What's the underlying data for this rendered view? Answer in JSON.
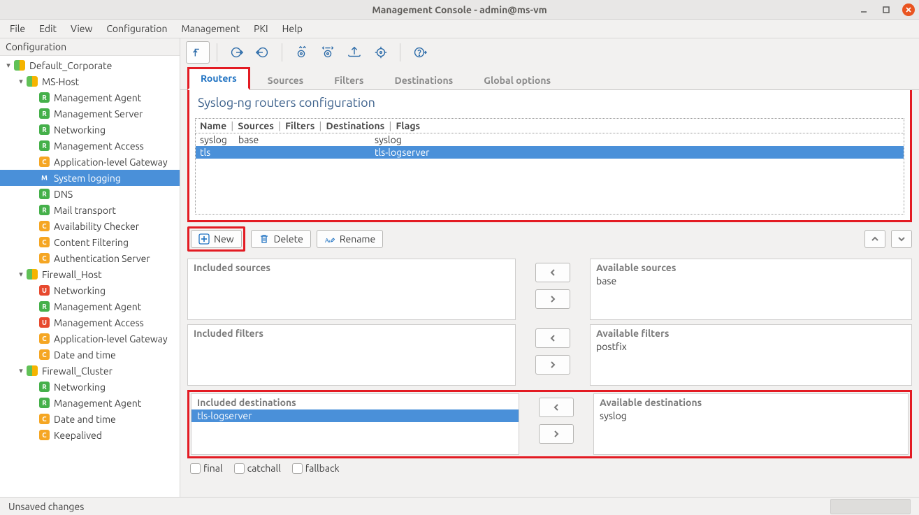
{
  "window": {
    "title": "Management Console - admin@ms-vm"
  },
  "menu": [
    "File",
    "Edit",
    "View",
    "Configuration",
    "Management",
    "PKI",
    "Help"
  ],
  "sidebar": {
    "title": "Configuration",
    "indent_unit": 18,
    "colors": {
      "site_left": "#61c157",
      "site_right": "#f5b400",
      "R": "#45b04a",
      "C": "#f5a623",
      "U": "#e7492e",
      "M": "#4a90d9"
    },
    "nodes": [
      {
        "level": 0,
        "expanded": true,
        "dual": true,
        "label": "Default_Corporate"
      },
      {
        "level": 1,
        "expanded": true,
        "dual": true,
        "label": "MS-Host"
      },
      {
        "level": 2,
        "badge": "R",
        "label": "Management Agent"
      },
      {
        "level": 2,
        "badge": "R",
        "label": "Management Server"
      },
      {
        "level": 2,
        "badge": "R",
        "label": "Networking"
      },
      {
        "level": 2,
        "badge": "R",
        "label": "Management Access"
      },
      {
        "level": 2,
        "badge": "C",
        "label": "Application-level Gateway"
      },
      {
        "level": 2,
        "badge": "M",
        "label": "System logging",
        "selected": true
      },
      {
        "level": 2,
        "badge": "R",
        "label": "DNS"
      },
      {
        "level": 2,
        "badge": "R",
        "label": "Mail transport"
      },
      {
        "level": 2,
        "badge": "C",
        "label": "Availability Checker"
      },
      {
        "level": 2,
        "badge": "C",
        "label": "Content Filtering"
      },
      {
        "level": 2,
        "badge": "C",
        "label": "Authentication Server"
      },
      {
        "level": 1,
        "expanded": true,
        "dual": true,
        "label": "Firewall_Host"
      },
      {
        "level": 2,
        "badge": "U",
        "label": "Networking"
      },
      {
        "level": 2,
        "badge": "R",
        "label": "Management Agent"
      },
      {
        "level": 2,
        "badge": "U",
        "label": "Management Access"
      },
      {
        "level": 2,
        "badge": "C",
        "label": "Application-level Gateway"
      },
      {
        "level": 2,
        "badge": "C",
        "label": "Date and time"
      },
      {
        "level": 1,
        "expanded": true,
        "dual": true,
        "label": "Firewall_Cluster"
      },
      {
        "level": 2,
        "badge": "R",
        "label": "Networking"
      },
      {
        "level": 2,
        "badge": "R",
        "label": "Management Agent"
      },
      {
        "level": 2,
        "badge": "C",
        "label": "Date and time"
      },
      {
        "level": 2,
        "badge": "C",
        "label": "Keepalived"
      }
    ]
  },
  "tabs": {
    "items": [
      "Routers",
      "Sources",
      "Filters",
      "Destinations",
      "Global options"
    ],
    "active": 0
  },
  "panel": {
    "title": "Syslog-ng routers configuration",
    "header_cols": [
      "Name",
      "Sources",
      "Filters",
      "Destinations",
      "Flags"
    ],
    "col_widths": [
      "55px",
      "125px",
      "70px",
      "auto",
      "80px"
    ],
    "rows": [
      {
        "cells": [
          "syslog",
          "base",
          "",
          "syslog",
          ""
        ],
        "selected": false
      },
      {
        "cells": [
          "tls",
          "",
          "",
          "tls-logserver",
          ""
        ],
        "selected": true
      }
    ]
  },
  "buttons": {
    "new": "New",
    "delete": "Delete",
    "rename": "Rename"
  },
  "lists": [
    {
      "left_head": "Included sources",
      "left_items": [],
      "right_head": "Available sources",
      "right_items": [
        {
          "text": "base"
        }
      ]
    },
    {
      "left_head": "Included filters",
      "left_items": [],
      "right_head": "Available filters",
      "right_items": [
        {
          "text": "postfix"
        }
      ]
    },
    {
      "left_head": "Included destinations",
      "left_items": [
        {
          "text": "tls-logserver",
          "selected": true
        }
      ],
      "right_head": "Available destinations",
      "right_items": [
        {
          "text": "syslog"
        }
      ],
      "highlight": true
    }
  ],
  "flags": [
    "final",
    "catchall",
    "fallback"
  ],
  "status": "Unsaved changes"
}
